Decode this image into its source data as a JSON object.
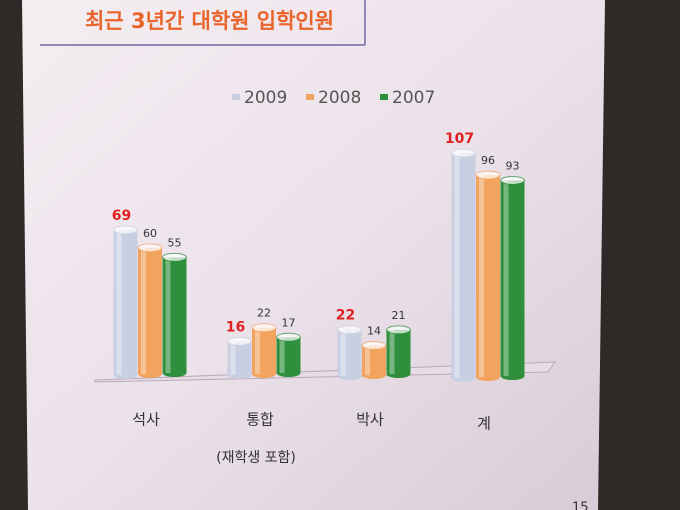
{
  "chart_data": {
    "type": "bar",
    "title": "최근 3년간 대학원 입학인원",
    "categories": [
      "석사",
      "통합",
      "박사",
      "계"
    ],
    "category_notes": [
      null,
      "(재학생 포함)",
      null,
      null
    ],
    "series": [
      {
        "name": "2009",
        "color": "#c9cfe2",
        "label_color": "#e02020",
        "values": [
          69,
          16,
          22,
          107
        ]
      },
      {
        "name": "2008",
        "color": "#f2a35e",
        "label_color": "#333333",
        "values": [
          60,
          22,
          14,
          96
        ]
      },
      {
        "name": "2007",
        "color": "#2f8f3c",
        "label_color": "#333333",
        "values": [
          55,
          17,
          21,
          93
        ]
      }
    ],
    "page_number": "15"
  }
}
